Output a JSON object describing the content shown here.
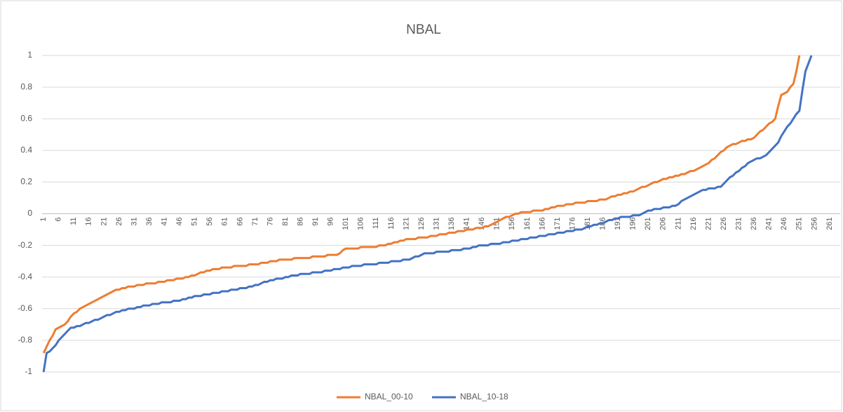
{
  "chart_data": {
    "type": "line",
    "title": "NBAL",
    "categories": [
      1,
      null,
      null,
      null,
      null,
      6,
      null,
      null,
      null,
      null,
      11,
      null,
      null,
      null,
      null,
      16,
      null,
      null,
      null,
      null,
      21,
      null,
      null,
      null,
      null,
      26,
      null,
      null,
      null,
      null,
      31,
      null,
      null,
      null,
      null,
      36,
      null,
      null,
      null,
      null,
      41,
      null,
      null,
      null,
      null,
      46,
      null,
      null,
      null,
      null,
      51,
      null,
      null,
      null,
      null,
      56,
      null,
      null,
      null,
      null,
      61,
      null,
      null,
      null,
      null,
      66,
      null,
      null,
      null,
      null,
      71,
      null,
      null,
      null,
      null,
      76,
      null,
      null,
      null,
      null,
      81,
      null,
      null,
      null,
      null,
      86,
      null,
      null,
      null,
      null,
      91,
      null,
      null,
      null,
      null,
      96,
      null,
      null,
      null,
      null,
      101,
      null,
      null,
      null,
      null,
      106,
      null,
      null,
      null,
      null,
      111,
      null,
      null,
      null,
      null,
      116,
      null,
      null,
      null,
      null,
      121,
      null,
      null,
      null,
      null,
      126,
      null,
      null,
      null,
      null,
      131,
      null,
      null,
      null,
      null,
      136,
      null,
      null,
      null,
      null,
      141,
      null,
      null,
      null,
      null,
      146,
      null,
      null,
      null,
      null,
      151,
      null,
      null,
      null,
      null,
      156,
      null,
      null,
      null,
      null,
      161,
      null,
      null,
      null,
      null,
      166,
      null,
      null,
      null,
      null,
      171,
      null,
      null,
      null,
      null,
      176,
      null,
      null,
      null,
      null,
      181,
      null,
      null,
      null,
      null,
      186,
      null,
      null,
      null,
      null,
      191,
      null,
      null,
      null,
      null,
      196,
      null,
      null,
      null,
      null,
      201,
      null,
      null,
      null,
      null,
      206,
      null,
      null,
      null,
      null,
      211,
      null,
      null,
      null,
      null,
      216,
      null,
      null,
      null,
      null,
      221,
      null,
      null,
      null,
      null,
      226,
      null,
      null,
      null,
      null,
      231,
      null,
      null,
      null,
      null,
      236,
      null,
      null,
      null,
      null,
      241,
      null,
      null,
      null,
      null,
      246,
      null,
      null,
      null,
      null,
      251,
      null,
      null,
      null,
      null,
      256,
      null,
      null,
      null,
      null,
      261,
      null,
      null,
      null
    ],
    "series": [
      {
        "name": "NBAL_00-10",
        "color": "#ed7d31",
        "values": [
          -0.88,
          -0.84,
          -0.8,
          -0.77,
          -0.73,
          -0.72,
          -0.71,
          -0.7,
          -0.68,
          -0.65,
          -0.63,
          -0.62,
          -0.6,
          -0.59,
          -0.58,
          -0.57,
          -0.56,
          -0.55,
          -0.54,
          -0.53,
          -0.52,
          -0.51,
          -0.5,
          -0.49,
          -0.48,
          -0.48,
          -0.47,
          -0.47,
          -0.46,
          -0.46,
          -0.46,
          -0.45,
          -0.45,
          -0.45,
          -0.44,
          -0.44,
          -0.44,
          -0.44,
          -0.43,
          -0.43,
          -0.43,
          -0.42,
          -0.42,
          -0.42,
          -0.41,
          -0.41,
          -0.41,
          -0.4,
          -0.4,
          -0.39,
          -0.39,
          -0.38,
          -0.37,
          -0.37,
          -0.36,
          -0.36,
          -0.35,
          -0.35,
          -0.35,
          -0.34,
          -0.34,
          -0.34,
          -0.34,
          -0.33,
          -0.33,
          -0.33,
          -0.33,
          -0.33,
          -0.32,
          -0.32,
          -0.32,
          -0.32,
          -0.31,
          -0.31,
          -0.31,
          -0.3,
          -0.3,
          -0.3,
          -0.29,
          -0.29,
          -0.29,
          -0.29,
          -0.29,
          -0.28,
          -0.28,
          -0.28,
          -0.28,
          -0.28,
          -0.28,
          -0.27,
          -0.27,
          -0.27,
          -0.27,
          -0.27,
          -0.26,
          -0.26,
          -0.26,
          -0.26,
          -0.25,
          -0.23,
          -0.22,
          -0.22,
          -0.22,
          -0.22,
          -0.22,
          -0.21,
          -0.21,
          -0.21,
          -0.21,
          -0.21,
          -0.21,
          -0.2,
          -0.2,
          -0.2,
          -0.19,
          -0.19,
          -0.18,
          -0.18,
          -0.17,
          -0.17,
          -0.16,
          -0.16,
          -0.16,
          -0.16,
          -0.15,
          -0.15,
          -0.15,
          -0.15,
          -0.14,
          -0.14,
          -0.14,
          -0.13,
          -0.13,
          -0.13,
          -0.12,
          -0.12,
          -0.12,
          -0.11,
          -0.11,
          -0.11,
          -0.1,
          -0.1,
          -0.1,
          -0.09,
          -0.09,
          -0.09,
          -0.08,
          -0.08,
          -0.07,
          -0.06,
          -0.05,
          -0.04,
          -0.03,
          -0.02,
          -0.02,
          -0.01,
          0,
          0,
          0.01,
          0.01,
          0.01,
          0.01,
          0.02,
          0.02,
          0.02,
          0.02,
          0.03,
          0.03,
          0.04,
          0.04,
          0.05,
          0.05,
          0.05,
          0.06,
          0.06,
          0.06,
          0.07,
          0.07,
          0.07,
          0.07,
          0.08,
          0.08,
          0.08,
          0.08,
          0.09,
          0.09,
          0.09,
          0.1,
          0.11,
          0.11,
          0.12,
          0.12,
          0.13,
          0.13,
          0.14,
          0.14,
          0.15,
          0.16,
          0.17,
          0.17,
          0.18,
          0.19,
          0.2,
          0.2,
          0.21,
          0.22,
          0.22,
          0.23,
          0.23,
          0.24,
          0.24,
          0.25,
          0.25,
          0.26,
          0.27,
          0.27,
          0.28,
          0.29,
          0.3,
          0.31,
          0.32,
          0.34,
          0.35,
          0.37,
          0.39,
          0.4,
          0.42,
          0.43,
          0.44,
          0.44,
          0.45,
          0.46,
          0.46,
          0.47,
          0.47,
          0.48,
          0.5,
          0.52,
          0.53,
          0.55,
          0.57,
          0.58,
          0.6,
          0.68,
          0.75,
          0.76,
          0.77,
          0.8,
          0.82,
          0.9,
          1,
          null,
          null,
          null,
          null,
          null,
          null,
          null,
          null,
          null,
          null,
          null,
          null,
          null
        ]
      },
      {
        "name": "NBAL_10-18",
        "color": "#4472c4",
        "values": [
          -1,
          -0.88,
          -0.87,
          -0.85,
          -0.83,
          -0.8,
          -0.78,
          -0.76,
          -0.74,
          -0.72,
          -0.72,
          -0.71,
          -0.71,
          -0.7,
          -0.69,
          -0.69,
          -0.68,
          -0.67,
          -0.67,
          -0.66,
          -0.65,
          -0.64,
          -0.64,
          -0.63,
          -0.62,
          -0.62,
          -0.61,
          -0.61,
          -0.6,
          -0.6,
          -0.6,
          -0.59,
          -0.59,
          -0.58,
          -0.58,
          -0.58,
          -0.57,
          -0.57,
          -0.57,
          -0.56,
          -0.56,
          -0.56,
          -0.56,
          -0.55,
          -0.55,
          -0.55,
          -0.54,
          -0.54,
          -0.53,
          -0.53,
          -0.52,
          -0.52,
          -0.52,
          -0.51,
          -0.51,
          -0.51,
          -0.5,
          -0.5,
          -0.5,
          -0.49,
          -0.49,
          -0.49,
          -0.48,
          -0.48,
          -0.48,
          -0.47,
          -0.47,
          -0.47,
          -0.46,
          -0.46,
          -0.45,
          -0.45,
          -0.44,
          -0.43,
          -0.43,
          -0.42,
          -0.42,
          -0.41,
          -0.41,
          -0.41,
          -0.4,
          -0.4,
          -0.39,
          -0.39,
          -0.39,
          -0.38,
          -0.38,
          -0.38,
          -0.38,
          -0.37,
          -0.37,
          -0.37,
          -0.37,
          -0.36,
          -0.36,
          -0.36,
          -0.35,
          -0.35,
          -0.35,
          -0.34,
          -0.34,
          -0.34,
          -0.33,
          -0.33,
          -0.33,
          -0.33,
          -0.32,
          -0.32,
          -0.32,
          -0.32,
          -0.32,
          -0.31,
          -0.31,
          -0.31,
          -0.31,
          -0.3,
          -0.3,
          -0.3,
          -0.3,
          -0.29,
          -0.29,
          -0.29,
          -0.28,
          -0.27,
          -0.27,
          -0.26,
          -0.25,
          -0.25,
          -0.25,
          -0.25,
          -0.24,
          -0.24,
          -0.24,
          -0.24,
          -0.24,
          -0.23,
          -0.23,
          -0.23,
          -0.23,
          -0.22,
          -0.22,
          -0.22,
          -0.21,
          -0.21,
          -0.2,
          -0.2,
          -0.2,
          -0.2,
          -0.19,
          -0.19,
          -0.19,
          -0.19,
          -0.18,
          -0.18,
          -0.18,
          -0.17,
          -0.17,
          -0.17,
          -0.16,
          -0.16,
          -0.16,
          -0.15,
          -0.15,
          -0.15,
          -0.14,
          -0.14,
          -0.14,
          -0.13,
          -0.13,
          -0.13,
          -0.12,
          -0.12,
          -0.12,
          -0.11,
          -0.11,
          -0.11,
          -0.1,
          -0.1,
          -0.1,
          -0.09,
          -0.08,
          -0.08,
          -0.07,
          -0.07,
          -0.06,
          -0.06,
          -0.05,
          -0.04,
          -0.04,
          -0.03,
          -0.03,
          -0.02,
          -0.02,
          -0.02,
          -0.02,
          -0.01,
          -0.01,
          -0.01,
          0,
          0.01,
          0.02,
          0.02,
          0.03,
          0.03,
          0.03,
          0.04,
          0.04,
          0.04,
          0.05,
          0.05,
          0.06,
          0.08,
          0.09,
          0.1,
          0.11,
          0.12,
          0.13,
          0.14,
          0.15,
          0.15,
          0.16,
          0.16,
          0.16,
          0.17,
          0.17,
          0.19,
          0.21,
          0.23,
          0.24,
          0.26,
          0.27,
          0.29,
          0.3,
          0.32,
          0.33,
          0.34,
          0.35,
          0.35,
          0.36,
          0.37,
          0.39,
          0.41,
          0.43,
          0.45,
          0.49,
          0.52,
          0.55,
          0.57,
          0.6,
          0.63,
          0.65,
          0.78,
          0.9,
          0.95,
          1,
          null,
          null,
          null,
          null,
          null,
          null,
          null,
          null,
          null
        ]
      }
    ],
    "ylim": [
      -1,
      1
    ],
    "yticks": [
      -1,
      -0.8,
      -0.6,
      -0.4,
      -0.2,
      0,
      0.2,
      0.4,
      0.6,
      0.8,
      1
    ],
    "grid": true,
    "legend": "bottom"
  }
}
